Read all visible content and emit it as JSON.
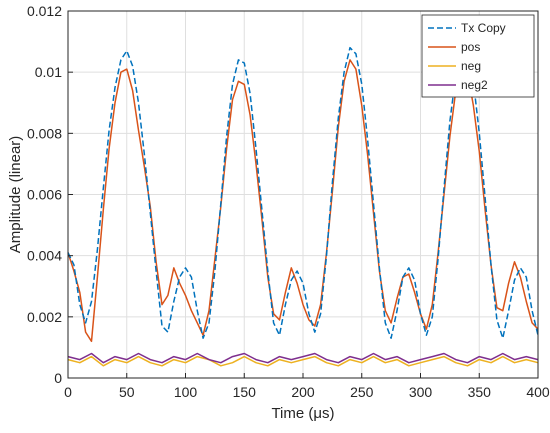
{
  "chart_data": {
    "type": "line",
    "xlabel": "Time (μs)",
    "ylabel": "Amplitude (linear)",
    "xlim": [
      0,
      400
    ],
    "ylim": [
      0,
      0.012
    ],
    "xticks": [
      0,
      50,
      100,
      150,
      200,
      250,
      300,
      350,
      400
    ],
    "xtick_labels": [
      "0",
      "50",
      "100",
      "150",
      "200",
      "250",
      "300",
      "350",
      "400"
    ],
    "yticks": [
      0,
      0.002,
      0.004,
      0.006,
      0.008,
      0.01,
      0.012
    ],
    "ytick_labels": [
      "0",
      "0.002",
      "0.004",
      "0.006",
      "0.008",
      "0.01",
      "0.012"
    ],
    "grid": true,
    "legend_position": "top-right",
    "series": [
      {
        "name": "Tx Copy",
        "color": "#0072BD",
        "style": "dashed",
        "x": [
          0,
          5,
          10,
          15,
          20,
          25,
          30,
          35,
          40,
          45,
          50,
          55,
          60,
          65,
          70,
          75,
          80,
          85,
          90,
          95,
          100,
          105,
          110,
          115,
          120,
          125,
          130,
          135,
          140,
          145,
          150,
          155,
          160,
          165,
          170,
          175,
          180,
          185,
          190,
          195,
          200,
          205,
          210,
          215,
          220,
          225,
          230,
          235,
          240,
          245,
          250,
          255,
          260,
          265,
          270,
          275,
          280,
          285,
          290,
          295,
          300,
          305,
          310,
          315,
          320,
          325,
          330,
          335,
          340,
          345,
          350,
          355,
          360,
          365,
          370,
          375,
          380,
          385,
          390,
          395,
          400
        ],
        "y": [
          0.0041,
          0.0037,
          0.0024,
          0.0018,
          0.0025,
          0.0042,
          0.0062,
          0.0081,
          0.0095,
          0.0104,
          0.0107,
          0.0102,
          0.009,
          0.0073,
          0.0054,
          0.0035,
          0.0017,
          0.0015,
          0.0025,
          0.0033,
          0.0036,
          0.0033,
          0.0022,
          0.0013,
          0.0018,
          0.0035,
          0.0057,
          0.0079,
          0.0096,
          0.0104,
          0.0103,
          0.0093,
          0.0075,
          0.0055,
          0.0035,
          0.0018,
          0.0014,
          0.0024,
          0.0032,
          0.0035,
          0.0031,
          0.0021,
          0.0015,
          0.0021,
          0.004,
          0.0064,
          0.0085,
          0.01,
          0.0108,
          0.0106,
          0.0096,
          0.0078,
          0.0057,
          0.0036,
          0.0018,
          0.0013,
          0.0022,
          0.0033,
          0.0036,
          0.0032,
          0.0021,
          0.0014,
          0.002,
          0.0039,
          0.0062,
          0.0084,
          0.0099,
          0.0107,
          0.0107,
          0.0097,
          0.008,
          0.0059,
          0.0037,
          0.0019,
          0.0013,
          0.0022,
          0.0032,
          0.0036,
          0.0033,
          0.0022,
          0.0014
        ]
      },
      {
        "name": "pos",
        "color": "#D95319",
        "style": "solid",
        "x": [
          0,
          5,
          10,
          15,
          20,
          25,
          30,
          35,
          40,
          45,
          50,
          55,
          60,
          65,
          70,
          75,
          80,
          85,
          90,
          95,
          100,
          105,
          110,
          115,
          120,
          125,
          130,
          135,
          140,
          145,
          150,
          155,
          160,
          165,
          170,
          175,
          180,
          185,
          190,
          195,
          200,
          205,
          210,
          215,
          220,
          225,
          230,
          235,
          240,
          245,
          250,
          255,
          260,
          265,
          270,
          275,
          280,
          285,
          290,
          295,
          300,
          305,
          310,
          315,
          320,
          325,
          330,
          335,
          340,
          345,
          350,
          355,
          360,
          365,
          370,
          375,
          380,
          385,
          390,
          395,
          400
        ],
        "y": [
          0.0041,
          0.0035,
          0.0028,
          0.0015,
          0.0012,
          0.0033,
          0.0055,
          0.0075,
          0.009,
          0.01,
          0.0101,
          0.0094,
          0.0081,
          0.0069,
          0.0056,
          0.0038,
          0.0024,
          0.0027,
          0.0036,
          0.0031,
          0.0027,
          0.0022,
          0.0018,
          0.0014,
          0.0022,
          0.0039,
          0.0056,
          0.0075,
          0.0091,
          0.0097,
          0.0096,
          0.0086,
          0.007,
          0.0052,
          0.0033,
          0.0021,
          0.0019,
          0.0028,
          0.0036,
          0.0031,
          0.0024,
          0.0019,
          0.0017,
          0.0024,
          0.0041,
          0.0061,
          0.0082,
          0.0097,
          0.0104,
          0.0101,
          0.0089,
          0.0073,
          0.0054,
          0.0035,
          0.0022,
          0.0018,
          0.0026,
          0.0033,
          0.0034,
          0.0028,
          0.0021,
          0.0016,
          0.0024,
          0.0041,
          0.006,
          0.0079,
          0.0094,
          0.0101,
          0.01,
          0.0089,
          0.0074,
          0.0055,
          0.0037,
          0.0023,
          0.0022,
          0.0031,
          0.0038,
          0.0033,
          0.0025,
          0.0018,
          0.0016
        ]
      },
      {
        "name": "neg",
        "color": "#EDB120",
        "style": "solid",
        "x": [
          0,
          10,
          20,
          30,
          40,
          50,
          60,
          70,
          80,
          90,
          100,
          110,
          120,
          130,
          140,
          150,
          160,
          170,
          180,
          190,
          200,
          210,
          220,
          230,
          240,
          250,
          260,
          270,
          280,
          290,
          300,
          310,
          320,
          330,
          340,
          350,
          360,
          370,
          380,
          390,
          400
        ],
        "y": [
          0.0006,
          0.0005,
          0.0007,
          0.0004,
          0.0006,
          0.0005,
          0.0007,
          0.0005,
          0.0004,
          0.0006,
          0.0005,
          0.0007,
          0.0006,
          0.0004,
          0.0005,
          0.0007,
          0.0005,
          0.0004,
          0.0006,
          0.0005,
          0.0006,
          0.0007,
          0.0005,
          0.0004,
          0.0006,
          0.0005,
          0.0007,
          0.0005,
          0.0006,
          0.0004,
          0.0005,
          0.0006,
          0.0007,
          0.0005,
          0.0004,
          0.0006,
          0.0005,
          0.0007,
          0.0005,
          0.0006,
          0.0005
        ]
      },
      {
        "name": "neg2",
        "color": "#7E2F8E",
        "style": "solid",
        "x": [
          0,
          10,
          20,
          30,
          40,
          50,
          60,
          70,
          80,
          90,
          100,
          110,
          120,
          130,
          140,
          150,
          160,
          170,
          180,
          190,
          200,
          210,
          220,
          230,
          240,
          250,
          260,
          270,
          280,
          290,
          300,
          310,
          320,
          330,
          340,
          350,
          360,
          370,
          380,
          390,
          400
        ],
        "y": [
          0.0007,
          0.0006,
          0.0008,
          0.0005,
          0.0007,
          0.0006,
          0.0008,
          0.0006,
          0.0005,
          0.0007,
          0.0006,
          0.0008,
          0.0006,
          0.0005,
          0.0007,
          0.0008,
          0.0006,
          0.0005,
          0.0007,
          0.0006,
          0.0007,
          0.0008,
          0.0006,
          0.0005,
          0.0007,
          0.0006,
          0.0008,
          0.0006,
          0.0007,
          0.0005,
          0.0006,
          0.0007,
          0.0008,
          0.0006,
          0.0005,
          0.0007,
          0.0006,
          0.0008,
          0.0006,
          0.0007,
          0.0006
        ]
      }
    ]
  }
}
